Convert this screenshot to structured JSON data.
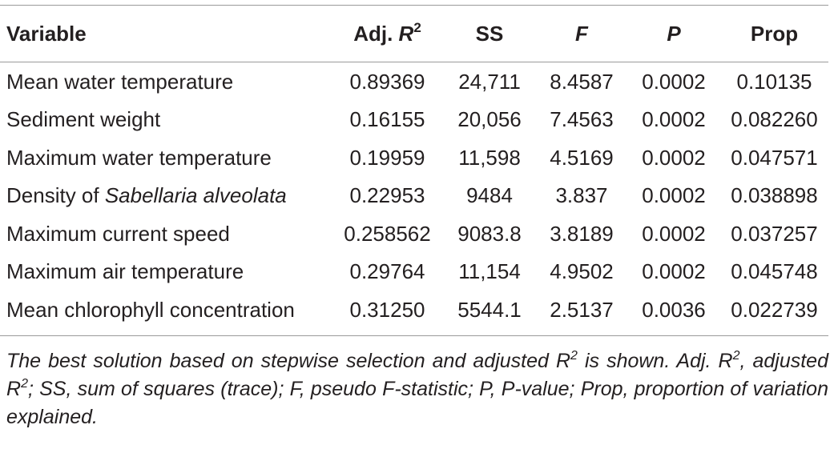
{
  "table": {
    "headers": {
      "variable": "Variable",
      "adj_r2": {
        "text": "Adj. ",
        "symbol": "R",
        "sup": "2"
      },
      "ss": "SS",
      "f": "F",
      "p": "P",
      "prop": "Prop"
    },
    "rows": [
      {
        "variable": "Mean water temperature",
        "adj_r2": "0.89369",
        "ss": "24,711",
        "f": "8.4587",
        "p": "0.0002",
        "prop": "0.10135"
      },
      {
        "variable": "Sediment weight",
        "adj_r2": "0.16155",
        "ss": "20,056",
        "f": "7.4563",
        "p": "0.0002",
        "prop": "0.082260"
      },
      {
        "variable": "Maximum water temperature",
        "adj_r2": "0.19959",
        "ss": "11,598",
        "f": "4.5169",
        "p": "0.0002",
        "prop": "0.047571"
      },
      {
        "variable_prefix": "Density of ",
        "variable_italic": "Sabellaria alveolata",
        "adj_r2": "0.22953",
        "ss": "9484",
        "f": "3.837",
        "p": "0.0002",
        "prop": "0.038898"
      },
      {
        "variable": "Maximum current speed",
        "adj_r2": "0.258562",
        "ss": "9083.8",
        "f": "3.8189",
        "p": "0.0002",
        "prop": "0.037257"
      },
      {
        "variable": "Maximum air temperature",
        "adj_r2": "0.29764",
        "ss": "11,154",
        "f": "4.9502",
        "p": "0.0002",
        "prop": "0.045748"
      },
      {
        "variable": "Mean chlorophyll concentration",
        "adj_r2": "0.31250",
        "ss": "5544.1",
        "f": "2.5137",
        "p": "0.0036",
        "prop": "0.022739"
      }
    ]
  },
  "footnote": {
    "part1": "The best solution based on stepwise selection and adjusted R",
    "sup1": "2",
    "part2": " is shown. Adj. R",
    "sup2": "2",
    "part3": ", adjusted R",
    "sup3": "2",
    "part4": "; SS, sum of squares (trace); F, pseudo F-statistic; P, P-value; Prop, proportion of variation explained."
  }
}
